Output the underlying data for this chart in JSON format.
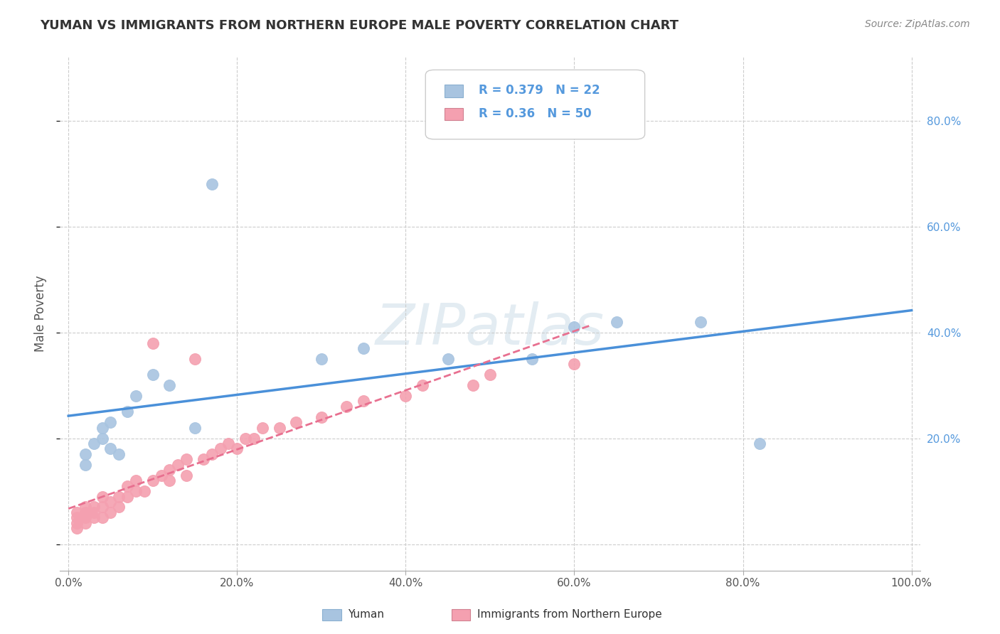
{
  "title": "YUMAN VS IMMIGRANTS FROM NORTHERN EUROPE MALE POVERTY CORRELATION CHART",
  "source": "Source: ZipAtlas.com",
  "ylabel": "Male Poverty",
  "watermark": "ZIPatlas",
  "yuman_color": "#a8c4e0",
  "imm_color": "#f4a0b0",
  "yuman_line_color": "#4a90d9",
  "imm_line_color": "#e87090",
  "yuman_R": 0.379,
  "yuman_N": 22,
  "imm_R": 0.36,
  "imm_N": 50,
  "xlim": [
    -0.01,
    1.01
  ],
  "ylim": [
    -0.05,
    0.92
  ],
  "xticks": [
    0.0,
    0.2,
    0.4,
    0.6,
    0.8,
    1.0
  ],
  "yticks": [
    0.0,
    0.2,
    0.4,
    0.6,
    0.8
  ],
  "xticklabels": [
    "0.0%",
    "20.0%",
    "40.0%",
    "60.0%",
    "80.0%",
    "100.0%"
  ],
  "yticklabels_right": [
    "20.0%",
    "40.0%",
    "60.0%",
    "80.0%"
  ],
  "yuman_x": [
    0.02,
    0.02,
    0.03,
    0.04,
    0.04,
    0.05,
    0.05,
    0.06,
    0.07,
    0.08,
    0.1,
    0.12,
    0.15,
    0.17,
    0.3,
    0.35,
    0.45,
    0.55,
    0.6,
    0.65,
    0.75,
    0.82
  ],
  "yuman_y": [
    0.15,
    0.17,
    0.19,
    0.2,
    0.22,
    0.18,
    0.23,
    0.17,
    0.25,
    0.28,
    0.32,
    0.3,
    0.22,
    0.68,
    0.35,
    0.37,
    0.35,
    0.35,
    0.41,
    0.42,
    0.42,
    0.19
  ],
  "imm_x": [
    0.01,
    0.01,
    0.01,
    0.01,
    0.02,
    0.02,
    0.02,
    0.02,
    0.03,
    0.03,
    0.03,
    0.04,
    0.04,
    0.04,
    0.05,
    0.05,
    0.06,
    0.06,
    0.07,
    0.07,
    0.08,
    0.08,
    0.09,
    0.1,
    0.1,
    0.11,
    0.12,
    0.12,
    0.13,
    0.14,
    0.14,
    0.15,
    0.16,
    0.17,
    0.18,
    0.19,
    0.2,
    0.21,
    0.22,
    0.23,
    0.25,
    0.27,
    0.3,
    0.33,
    0.35,
    0.4,
    0.42,
    0.48,
    0.5,
    0.6
  ],
  "imm_y": [
    0.03,
    0.04,
    0.05,
    0.06,
    0.04,
    0.05,
    0.06,
    0.07,
    0.05,
    0.06,
    0.07,
    0.05,
    0.07,
    0.09,
    0.06,
    0.08,
    0.07,
    0.09,
    0.09,
    0.11,
    0.1,
    0.12,
    0.1,
    0.12,
    0.38,
    0.13,
    0.12,
    0.14,
    0.15,
    0.13,
    0.16,
    0.35,
    0.16,
    0.17,
    0.18,
    0.19,
    0.18,
    0.2,
    0.2,
    0.22,
    0.22,
    0.23,
    0.24,
    0.26,
    0.27,
    0.28,
    0.3,
    0.3,
    0.32,
    0.34
  ],
  "background_color": "#ffffff",
  "grid_color": "#cccccc",
  "right_tick_color": "#5599dd"
}
